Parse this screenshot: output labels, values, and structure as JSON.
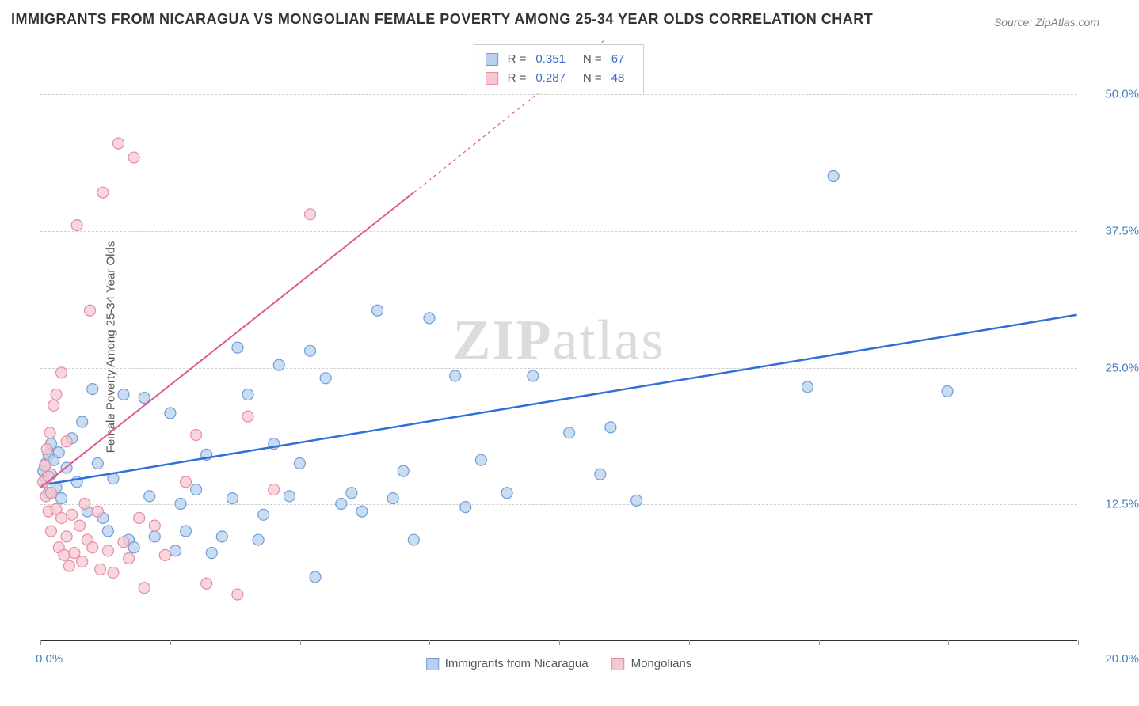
{
  "title": "IMMIGRANTS FROM NICARAGUA VS MONGOLIAN FEMALE POVERTY AMONG 25-34 YEAR OLDS CORRELATION CHART",
  "source": "Source: ZipAtlas.com",
  "y_axis_label": "Female Poverty Among 25-34 Year Olds",
  "watermark_a": "ZIP",
  "watermark_b": "atlas",
  "chart": {
    "type": "scatter",
    "xlim": [
      0,
      20
    ],
    "ylim": [
      0,
      55
    ],
    "x_ticks": [
      0,
      2.5,
      5,
      7.5,
      10,
      12.5,
      15,
      17.5,
      20
    ],
    "x_tick_labels_shown": {
      "0": "0.0%",
      "20": "20.0%"
    },
    "y_ticks": [
      12.5,
      25,
      37.5,
      50
    ],
    "y_tick_labels": [
      "12.5%",
      "25.0%",
      "37.5%",
      "50.0%"
    ],
    "background_color": "#ffffff",
    "grid_color": "#d0d0d0",
    "grid_style": "dashed",
    "marker_radius": 7,
    "marker_stroke_width": 1.2,
    "series": [
      {
        "name": "Immigrants from Nicaragua",
        "marker_fill": "#b8d0ee",
        "marker_stroke": "#6f9ed8",
        "line_color": "#2e6fd8",
        "line_width": 2.5,
        "line_dash": "none",
        "trend_start": [
          0,
          14.2
        ],
        "trend_end": [
          20,
          29.8
        ],
        "R": 0.351,
        "N": 67,
        "points": [
          [
            0.05,
            15.5
          ],
          [
            0.1,
            16.2
          ],
          [
            0.1,
            14.8
          ],
          [
            0.15,
            17
          ],
          [
            0.15,
            13.5
          ],
          [
            0.2,
            15.2
          ],
          [
            0.2,
            18
          ],
          [
            0.25,
            16.5
          ],
          [
            0.3,
            14
          ],
          [
            0.35,
            17.2
          ],
          [
            0.4,
            13
          ],
          [
            0.5,
            15.8
          ],
          [
            0.6,
            18.5
          ],
          [
            0.7,
            14.5
          ],
          [
            0.8,
            20
          ],
          [
            0.9,
            11.8
          ],
          [
            1.0,
            23
          ],
          [
            1.1,
            16.2
          ],
          [
            1.2,
            11.2
          ],
          [
            1.3,
            10
          ],
          [
            1.4,
            14.8
          ],
          [
            1.6,
            22.5
          ],
          [
            1.7,
            9.2
          ],
          [
            1.8,
            8.5
          ],
          [
            2.0,
            22.2
          ],
          [
            2.1,
            13.2
          ],
          [
            2.2,
            9.5
          ],
          [
            2.5,
            20.8
          ],
          [
            2.6,
            8.2
          ],
          [
            2.7,
            12.5
          ],
          [
            2.8,
            10
          ],
          [
            3.0,
            13.8
          ],
          [
            3.2,
            17
          ],
          [
            3.3,
            8
          ],
          [
            3.5,
            9.5
          ],
          [
            3.7,
            13
          ],
          [
            3.8,
            26.8
          ],
          [
            4.0,
            22.5
          ],
          [
            4.2,
            9.2
          ],
          [
            4.3,
            11.5
          ],
          [
            4.5,
            18
          ],
          [
            4.8,
            13.2
          ],
          [
            5.0,
            16.2
          ],
          [
            5.3,
            5.8
          ],
          [
            5.5,
            24
          ],
          [
            5.8,
            12.5
          ],
          [
            6.0,
            13.5
          ],
          [
            6.2,
            11.8
          ],
          [
            6.5,
            30.2
          ],
          [
            6.8,
            13
          ],
          [
            7.0,
            15.5
          ],
          [
            7.2,
            9.2
          ],
          [
            7.5,
            29.5
          ],
          [
            8.0,
            24.2
          ],
          [
            8.2,
            12.2
          ],
          [
            8.5,
            16.5
          ],
          [
            9.0,
            13.5
          ],
          [
            9.5,
            24.2
          ],
          [
            10.2,
            19
          ],
          [
            10.8,
            15.2
          ],
          [
            11.0,
            19.5
          ],
          [
            11.5,
            12.8
          ],
          [
            14.8,
            23.2
          ],
          [
            15.3,
            42.5
          ],
          [
            17.5,
            22.8
          ],
          [
            5.2,
            26.5
          ],
          [
            4.6,
            25.2
          ]
        ]
      },
      {
        "name": "Mongolians",
        "marker_fill": "#f6c8d2",
        "marker_stroke": "#e88ba3",
        "line_color": "#e05a88",
        "line_width": 2,
        "line_dash": "4,4",
        "trend_start": [
          0,
          14
        ],
        "trend_end": [
          7.2,
          41
        ],
        "trend_extrapolate_end": [
          17.5,
          80
        ],
        "R": 0.287,
        "N": 48,
        "points": [
          [
            0.05,
            14.5
          ],
          [
            0.08,
            16
          ],
          [
            0.1,
            13.2
          ],
          [
            0.12,
            17.5
          ],
          [
            0.15,
            15
          ],
          [
            0.15,
            11.8
          ],
          [
            0.18,
            19
          ],
          [
            0.2,
            13.5
          ],
          [
            0.2,
            10
          ],
          [
            0.25,
            21.5
          ],
          [
            0.3,
            12
          ],
          [
            0.3,
            22.5
          ],
          [
            0.35,
            8.5
          ],
          [
            0.4,
            11.2
          ],
          [
            0.4,
            24.5
          ],
          [
            0.45,
            7.8
          ],
          [
            0.5,
            9.5
          ],
          [
            0.5,
            18.2
          ],
          [
            0.55,
            6.8
          ],
          [
            0.6,
            11.5
          ],
          [
            0.65,
            8
          ],
          [
            0.7,
            38
          ],
          [
            0.75,
            10.5
          ],
          [
            0.8,
            7.2
          ],
          [
            0.85,
            12.5
          ],
          [
            0.9,
            9.2
          ],
          [
            0.95,
            30.2
          ],
          [
            1.0,
            8.5
          ],
          [
            1.1,
            11.8
          ],
          [
            1.15,
            6.5
          ],
          [
            1.2,
            41
          ],
          [
            1.3,
            8.2
          ],
          [
            1.4,
            6.2
          ],
          [
            1.5,
            45.5
          ],
          [
            1.6,
            9
          ],
          [
            1.7,
            7.5
          ],
          [
            1.8,
            44.2
          ],
          [
            1.9,
            11.2
          ],
          [
            2.0,
            4.8
          ],
          [
            2.2,
            10.5
          ],
          [
            2.4,
            7.8
          ],
          [
            2.8,
            14.5
          ],
          [
            3.0,
            18.8
          ],
          [
            3.2,
            5.2
          ],
          [
            3.8,
            4.2
          ],
          [
            4.5,
            13.8
          ],
          [
            5.2,
            39
          ],
          [
            4.0,
            20.5
          ]
        ]
      }
    ],
    "legend_top": {
      "rows": [
        {
          "swatch_fill": "#b8d0ee",
          "swatch_stroke": "#6f9ed8",
          "R_label": "R =",
          "R_val": "0.351",
          "N_label": "N =",
          "N_val": "67"
        },
        {
          "swatch_fill": "#f6c8d2",
          "swatch_stroke": "#e88ba3",
          "R_label": "R =",
          "R_val": "0.287",
          "N_label": "N =",
          "N_val": "48"
        }
      ]
    },
    "legend_bottom": [
      {
        "swatch_fill": "#b8d0ee",
        "swatch_stroke": "#6f9ed8",
        "label": "Immigrants from Nicaragua"
      },
      {
        "swatch_fill": "#f6c8d2",
        "swatch_stroke": "#e88ba3",
        "label": "Mongolians"
      }
    ]
  }
}
